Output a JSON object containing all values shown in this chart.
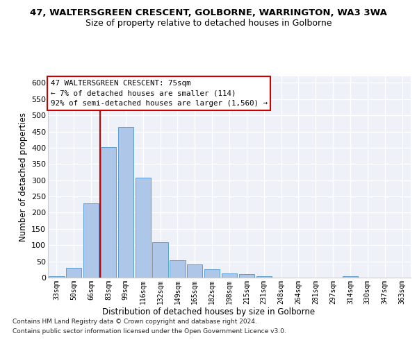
{
  "title1": "47, WALTERSGREEN CRESCENT, GOLBORNE, WARRINGTON, WA3 3WA",
  "title2": "Size of property relative to detached houses in Golborne",
  "xlabel": "Distribution of detached houses by size in Golborne",
  "ylabel": "Number of detached properties",
  "categories": [
    "33sqm",
    "50sqm",
    "66sqm",
    "83sqm",
    "99sqm",
    "116sqm",
    "132sqm",
    "149sqm",
    "165sqm",
    "182sqm",
    "198sqm",
    "215sqm",
    "231sqm",
    "248sqm",
    "264sqm",
    "281sqm",
    "297sqm",
    "314sqm",
    "330sqm",
    "347sqm",
    "363sqm"
  ],
  "values": [
    5,
    30,
    228,
    402,
    463,
    307,
    110,
    53,
    40,
    26,
    13,
    11,
    5,
    0,
    0,
    0,
    0,
    5,
    0,
    0,
    0
  ],
  "bar_color": "#aec6e8",
  "bar_edge_color": "#5a9fd4",
  "vline_color": "#cc0000",
  "annotation_line1": "47 WALTERSGREEN CRESCENT: 75sqm",
  "annotation_line2": "← 7% of detached houses are smaller (114)",
  "annotation_line3": "92% of semi-detached houses are larger (1,560) →",
  "annotation_box_edge": "#cc0000",
  "footer1": "Contains HM Land Registry data © Crown copyright and database right 2024.",
  "footer2": "Contains public sector information licensed under the Open Government Licence v3.0.",
  "bg_color": "#eef2f8",
  "ylim": [
    0,
    620
  ],
  "yticks": [
    0,
    50,
    100,
    150,
    200,
    250,
    300,
    350,
    400,
    450,
    500,
    550,
    600
  ],
  "vline_pos": 2.5
}
